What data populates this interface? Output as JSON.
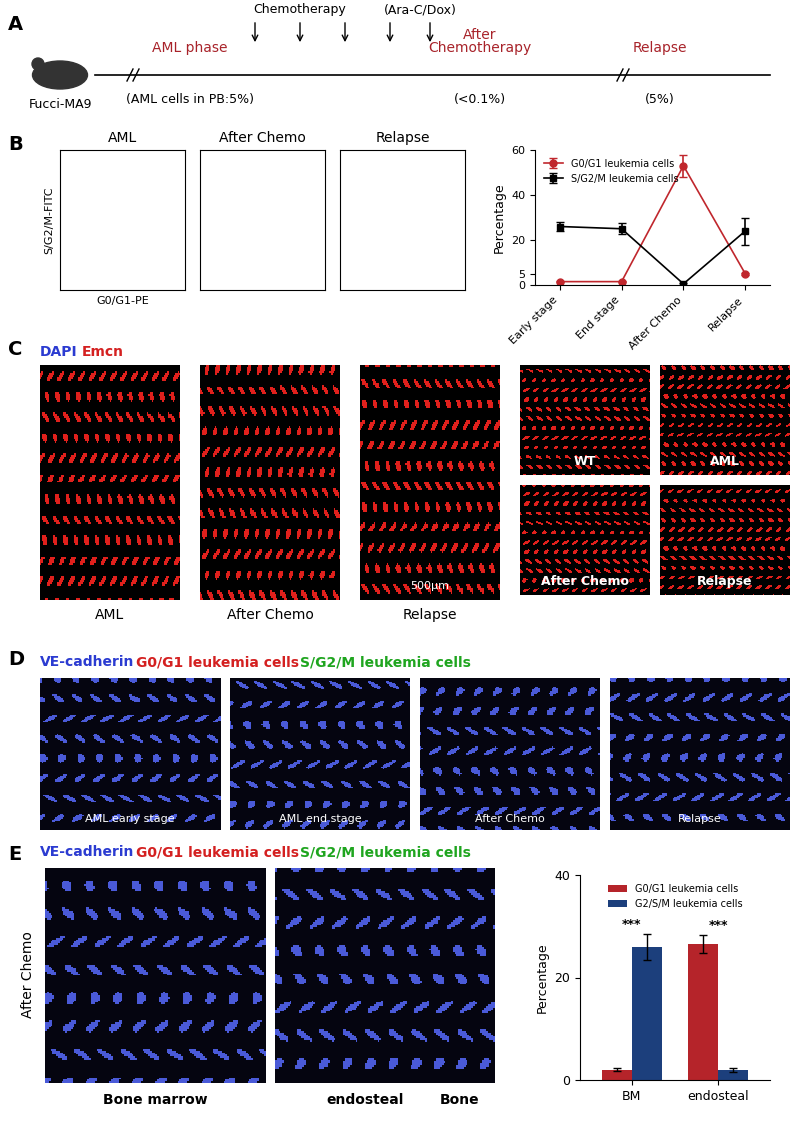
{
  "panel_labels": [
    "A",
    "B",
    "C",
    "D",
    "E"
  ],
  "panel_A": {
    "model": "Fucci-MA9",
    "treatment": "Chemotherapy",
    "drugs": "(Ara-C/Dox)",
    "phases": [
      {
        "label": [
          "AML phase"
        ],
        "note": "(AML cells in PB:5%)"
      },
      {
        "label": [
          "After",
          "Chemotherapy"
        ],
        "note": "(<0.1%)"
      },
      {
        "label": [
          "Relapse"
        ],
        "note": "(5%)"
      }
    ]
  },
  "panel_B": {
    "flow_plots": [
      "AML",
      "After Chemo",
      "Relapse"
    ],
    "xlabel": "G0/G1-PE",
    "ylabel": "S/G2/M-FITC"
  },
  "panel_C": {
    "stain": [
      "DAPI",
      "Emcn"
    ],
    "images": [
      "AML",
      "After Chemo",
      "Relapse"
    ],
    "scale_bar": "500µm",
    "insets": [
      "WT",
      "AML",
      "After Chemo",
      "Relapse"
    ]
  },
  "panel_D": {
    "stain": [
      "VE-cadherin",
      "G0/G1 leukemia cells",
      "S/G2/M leukemia cells"
    ],
    "images": [
      "AML early stage",
      "AML end stage",
      "After Chemo",
      "Relapse"
    ]
  },
  "panel_E": {
    "stain": [
      "VE-cadherin",
      "G0/G1 leukemia cells",
      "S/G2/M leukemia cells"
    ],
    "condition": "After Chemo",
    "images": [
      "Bone marrow",
      "endosteal"
    ],
    "region": "Bone"
  },
  "chart_data": [
    {
      "type": "line",
      "categories": [
        "Early stage",
        "End stage",
        "After Chemo",
        "Relapse"
      ],
      "ylabel": "Percentage",
      "ylim": [
        0,
        60
      ],
      "yticks": [
        0,
        5,
        20,
        40,
        60
      ],
      "legend": "upper left",
      "series": [
        {
          "name": "G0/G1 leukemia cells",
          "color": "#c0272d",
          "marker": "circle",
          "values": [
            1.5,
            1.5,
            53,
            5
          ],
          "errors": [
            0.3,
            0.3,
            5,
            0.5
          ]
        },
        {
          "name": "S/G2/M leukemia cells",
          "color": "#000000",
          "marker": "square",
          "values": [
            26,
            25,
            0.5,
            24
          ],
          "errors": [
            2,
            2.5,
            0.3,
            6
          ]
        }
      ]
    },
    {
      "type": "bar",
      "categories": [
        "BM",
        "endosteal"
      ],
      "ylabel": "Percentage",
      "ylim": [
        0,
        40
      ],
      "yticks": [
        0,
        20,
        40
      ],
      "legend": "upper center",
      "series": [
        {
          "name": "G0/G1 leukemia cells",
          "color": "#b5242a",
          "values": [
            2,
            26.5
          ],
          "errors": [
            0.3,
            1.8
          ]
        },
        {
          "name": "G2/S/M leukemia cells",
          "color": "#1c3f7c",
          "values": [
            26,
            2
          ],
          "errors": [
            2.5,
            0.4
          ]
        }
      ],
      "annotations": [
        "***",
        "***"
      ]
    }
  ]
}
